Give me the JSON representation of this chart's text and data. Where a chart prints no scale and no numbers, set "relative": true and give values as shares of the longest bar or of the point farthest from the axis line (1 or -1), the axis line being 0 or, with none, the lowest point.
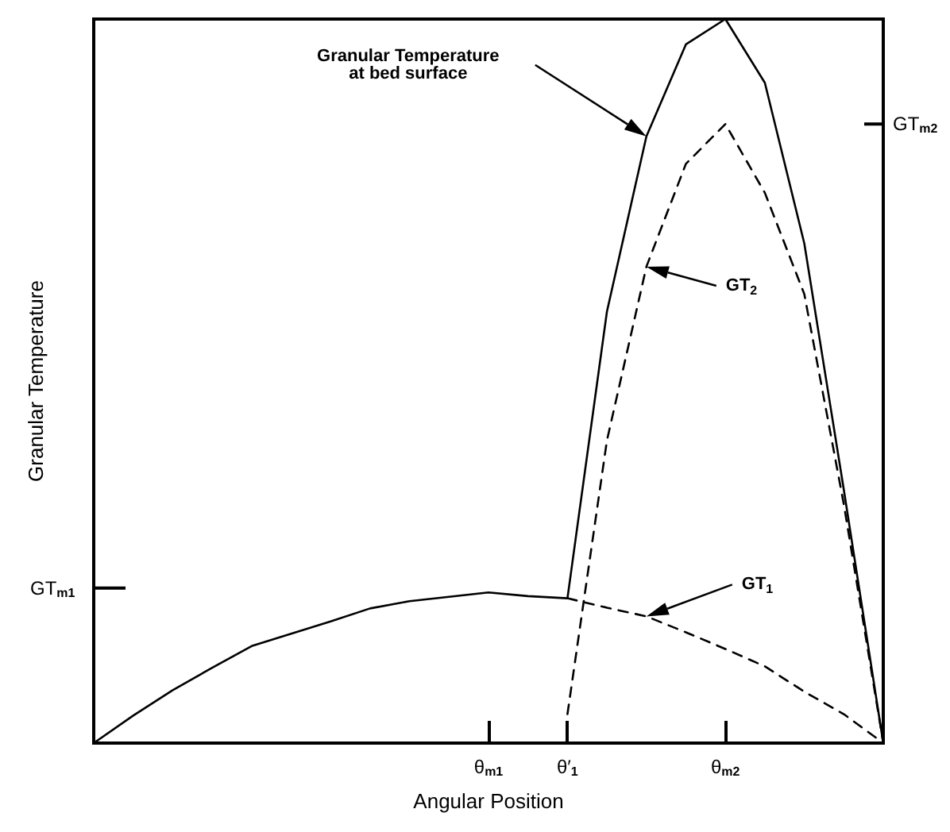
{
  "chart_data": {
    "type": "line",
    "relative": true,
    "xlabel": "Angular Position",
    "ylabel": "Granular Temperature",
    "categories": [
      null,
      null,
      null,
      null,
      null,
      null,
      null,
      null,
      null,
      null,
      "θ$_{m1}$",
      null,
      "θ′$_{1}$",
      null,
      null,
      null,
      "θ$_{m2}$",
      null,
      null,
      null,
      null
    ],
    "series": [
      {
        "color": "#000000",
        "line_style": "solid",
        "values": [
          0,
          0.038,
          0.073,
          0.104,
          0.134,
          0.151,
          0.168,
          0.186,
          0.196,
          0.202,
          0.208,
          0.203,
          0.2,
          0.596,
          0.838,
          0.965,
          1,
          0.912,
          0.69,
          0.35,
          0
        ]
      },
      {
        "color": "#000000",
        "line_style": "dashed",
        "values": [
          null,
          null,
          null,
          null,
          null,
          null,
          null,
          null,
          null,
          null,
          null,
          null,
          0.2,
          0.187,
          0.175,
          0.153,
          0.13,
          0.106,
          0.071,
          0.04,
          0
        ]
      },
      {
        "color": "#000000",
        "line_style": "dashed",
        "values": [
          null,
          null,
          null,
          null,
          null,
          null,
          null,
          null,
          null,
          null,
          null,
          null,
          0.04,
          0.418,
          0.658,
          0.8,
          0.855,
          0.76,
          0.62,
          0.33,
          0
        ]
      }
    ],
    "annotations": [
      "Granular Temperature\nat bed surface",
      "GT$_{1}$",
      "GT$_{2}$"
    ],
    "ref_lines": [
      {
        "axis": "y",
        "value": 0.214,
        "label": "GT$_{m1}$"
      },
      {
        "axis": "y",
        "value": 0.855,
        "label": "GT$_{m2}$"
      }
    ]
  }
}
